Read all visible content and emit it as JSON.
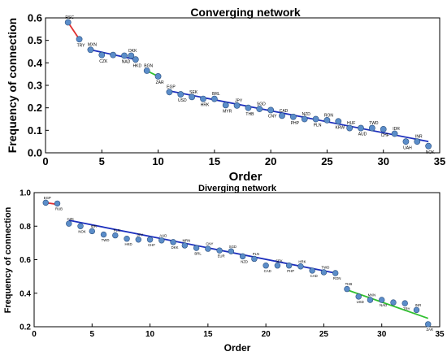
{
  "chart_data": [
    {
      "type": "scatter",
      "title": "Converging network",
      "xlabel": "Order",
      "ylabel": "Frequency of connection",
      "xlim": [
        0,
        35
      ],
      "ylim": [
        0,
        0.6
      ],
      "xticks": [
        0,
        5,
        10,
        15,
        20,
        25,
        30,
        35
      ],
      "yticks": [
        0.0,
        0.1,
        0.2,
        0.3,
        0.4,
        0.5,
        0.6
      ],
      "ytick_labels": [
        "0.0",
        "0.1",
        "0.2",
        "0.3",
        "0.4",
        "0.5",
        "0.6"
      ],
      "grid": false,
      "marker_color": "#5b8dc9",
      "points": [
        {
          "x": 2,
          "y": 0.58,
          "label": "RSC"
        },
        {
          "x": 3,
          "y": 0.505,
          "label": "TRY"
        },
        {
          "x": 4,
          "y": 0.458,
          "label": "MXN"
        },
        {
          "x": 5,
          "y": 0.435,
          "label": "CZK"
        },
        {
          "x": 6,
          "y": 0.435,
          "label": ""
        },
        {
          "x": 7,
          "y": 0.432,
          "label": "NAD"
        },
        {
          "x": 7.6,
          "y": 0.432,
          "label": "DKK"
        },
        {
          "x": 8,
          "y": 0.415,
          "label": "HKD"
        },
        {
          "x": 9,
          "y": 0.365,
          "label": "BGN"
        },
        {
          "x": 10,
          "y": 0.34,
          "label": "ZAR"
        },
        {
          "x": 11,
          "y": 0.27,
          "label": "EGP"
        },
        {
          "x": 12,
          "y": 0.26,
          "label": "USD"
        },
        {
          "x": 13,
          "y": 0.248,
          "label": "SEK"
        },
        {
          "x": 14,
          "y": 0.24,
          "label": "HRK"
        },
        {
          "x": 15,
          "y": 0.24,
          "label": "BRL"
        },
        {
          "x": 16,
          "y": 0.212,
          "label": "MYR"
        },
        {
          "x": 17,
          "y": 0.21,
          "label": "JPY"
        },
        {
          "x": 18,
          "y": 0.2,
          "label": "THB"
        },
        {
          "x": 19,
          "y": 0.195,
          "label": "SGD"
        },
        {
          "x": 20,
          "y": 0.19,
          "label": "CNY"
        },
        {
          "x": 21,
          "y": 0.165,
          "label": "CAD"
        },
        {
          "x": 22,
          "y": 0.16,
          "label": "PHP"
        },
        {
          "x": 23,
          "y": 0.15,
          "label": "NZD"
        },
        {
          "x": 24,
          "y": 0.15,
          "label": "PLN"
        },
        {
          "x": 25,
          "y": 0.145,
          "label": "RON"
        },
        {
          "x": 26,
          "y": 0.14,
          "label": "KRW"
        },
        {
          "x": 27,
          "y": 0.11,
          "label": "HUF"
        },
        {
          "x": 28,
          "y": 0.11,
          "label": "AUD"
        },
        {
          "x": 29,
          "y": 0.11,
          "label": "TWD"
        },
        {
          "x": 30,
          "y": 0.105,
          "label": "CHF"
        },
        {
          "x": 31,
          "y": 0.085,
          "label": "IDR"
        },
        {
          "x": 32,
          "y": 0.05,
          "label": "UAH"
        },
        {
          "x": 33,
          "y": 0.05,
          "label": "INR"
        },
        {
          "x": 34,
          "y": 0.03,
          "label": "NOK"
        }
      ],
      "fit_lines": [
        {
          "color": "#e03030",
          "x": [
            2,
            3
          ],
          "y": [
            0.58,
            0.505
          ]
        },
        {
          "color": "#1c2fbd",
          "x": [
            4,
            8
          ],
          "y": [
            0.458,
            0.415
          ]
        },
        {
          "color": "#30c030",
          "x": [
            9,
            10
          ],
          "y": [
            0.365,
            0.34
          ]
        },
        {
          "color": "#1c2fbd",
          "x": [
            11,
            34
          ],
          "y": [
            0.275,
            0.05
          ]
        }
      ]
    },
    {
      "type": "scatter",
      "title": "Diverging network",
      "xlabel": "Order",
      "ylabel": "Frequency of connection",
      "xlim": [
        0,
        35
      ],
      "ylim": [
        0.2,
        1.0
      ],
      "xticks": [
        0,
        5,
        10,
        15,
        20,
        25,
        30,
        35
      ],
      "yticks": [
        0.2,
        0.4,
        0.6,
        0.8,
        1.0
      ],
      "ytick_labels": [
        "0.2",
        "0.4",
        "0.6",
        "0.8",
        "1.0"
      ],
      "grid": false,
      "marker_color": "#5b8dc9",
      "points": [
        {
          "x": 1,
          "y": 0.94,
          "label": "EGP"
        },
        {
          "x": 2,
          "y": 0.935,
          "label": "RUB"
        },
        {
          "x": 3,
          "y": 0.815,
          "label": "CZK"
        },
        {
          "x": 4,
          "y": 0.8,
          "label": "NOK"
        },
        {
          "x": 5,
          "y": 0.77,
          "label": "IDR"
        },
        {
          "x": 6,
          "y": 0.75,
          "label": "TWD"
        },
        {
          "x": 7,
          "y": 0.745,
          "label": "PLN"
        },
        {
          "x": 8,
          "y": 0.725,
          "label": "HKD"
        },
        {
          "x": 9,
          "y": 0.72,
          "label": "JPY"
        },
        {
          "x": 10,
          "y": 0.72,
          "label": "CHF"
        },
        {
          "x": 11,
          "y": 0.715,
          "label": "AUD"
        },
        {
          "x": 12,
          "y": 0.705,
          "label": "DKK"
        },
        {
          "x": 13,
          "y": 0.685,
          "label": "MRN"
        },
        {
          "x": 14,
          "y": 0.67,
          "label": "BRL"
        },
        {
          "x": 15,
          "y": 0.665,
          "label": "CNY"
        },
        {
          "x": 16,
          "y": 0.655,
          "label": "EUR"
        },
        {
          "x": 17,
          "y": 0.65,
          "label": "SGD"
        },
        {
          "x": 18,
          "y": 0.62,
          "label": "NZD"
        },
        {
          "x": 19,
          "y": 0.605,
          "label": "PLN"
        },
        {
          "x": 20,
          "y": 0.565,
          "label": "CAD"
        },
        {
          "x": 21,
          "y": 0.565,
          "label": "SEK"
        },
        {
          "x": 22,
          "y": 0.565,
          "label": "PHP"
        },
        {
          "x": 23,
          "y": 0.56,
          "label": "HRK"
        },
        {
          "x": 24,
          "y": 0.535,
          "label": "CAD"
        },
        {
          "x": 25,
          "y": 0.525,
          "label": "TWD"
        },
        {
          "x": 26,
          "y": 0.52,
          "label": "RON"
        },
        {
          "x": 27,
          "y": 0.425,
          "label": "THB"
        },
        {
          "x": 28,
          "y": 0.38,
          "label": "USD"
        },
        {
          "x": 29,
          "y": 0.36,
          "label": "MXN"
        },
        {
          "x": 30,
          "y": 0.36,
          "label": "NAD"
        },
        {
          "x": 31,
          "y": 0.345,
          "label": ""
        },
        {
          "x": 32,
          "y": 0.34,
          "label": "TRY"
        },
        {
          "x": 33,
          "y": 0.3,
          "label": "INR"
        },
        {
          "x": 34,
          "y": 0.215,
          "label": "ZAR"
        }
      ],
      "fit_lines": [
        {
          "color": "#e03030",
          "x": [
            1,
            2
          ],
          "y": [
            0.94,
            0.93
          ]
        },
        {
          "color": "#1c2fbd",
          "x": [
            3,
            26
          ],
          "y": [
            0.835,
            0.52
          ]
        },
        {
          "color": "#30c030",
          "x": [
            27,
            34
          ],
          "y": [
            0.42,
            0.25
          ]
        }
      ]
    }
  ]
}
